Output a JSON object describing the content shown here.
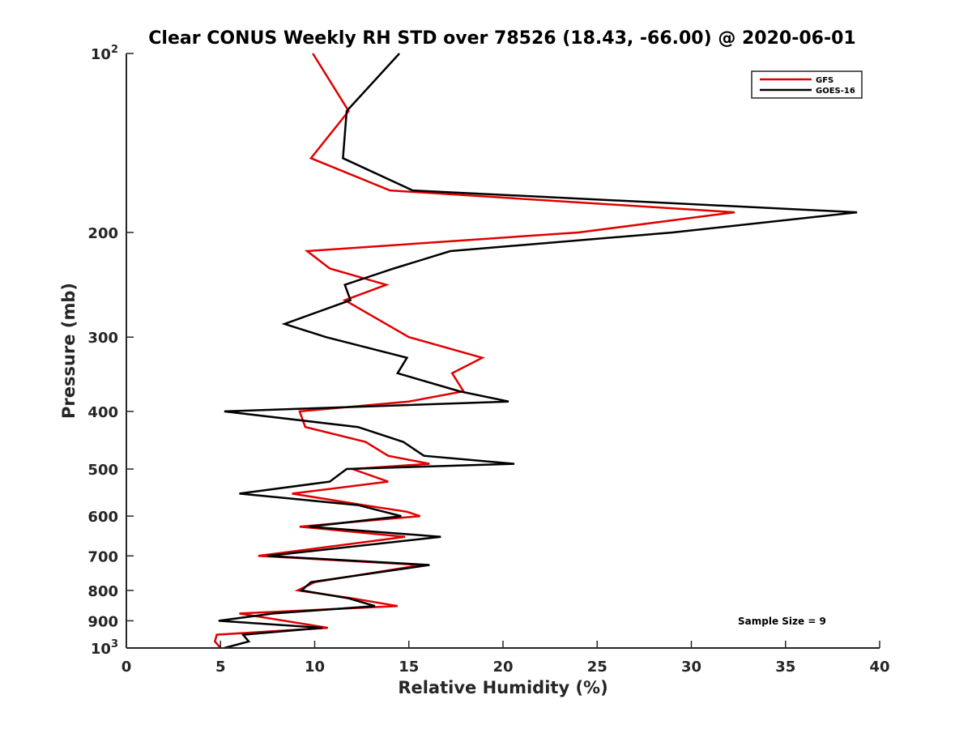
{
  "chart_data": {
    "type": "line",
    "title": "Clear CONUS Weekly RH STD over 78526 (18.43, -66.00) @ 2020-06-01",
    "xlabel": "Relative Humidity (%)",
    "ylabel": "Pressure (mb)",
    "xlim": [
      0,
      40
    ],
    "ylim": [
      100,
      1000
    ],
    "y_scale": "log",
    "y_reversed": true,
    "grid": false,
    "legend_position": "top-right",
    "x_ticks": [
      0,
      5,
      10,
      15,
      20,
      25,
      30,
      35,
      40
    ],
    "y_ticks": [
      {
        "value": 100,
        "base": "10",
        "exp": "2"
      },
      {
        "value": 200,
        "label": "200"
      },
      {
        "value": 300,
        "label": "300"
      },
      {
        "value": 400,
        "label": "400"
      },
      {
        "value": 500,
        "label": "500"
      },
      {
        "value": 600,
        "label": "600"
      },
      {
        "value": 700,
        "label": "700"
      },
      {
        "value": 800,
        "label": "800"
      },
      {
        "value": 900,
        "label": "900"
      },
      {
        "value": 1000,
        "base": "10",
        "exp": "3"
      }
    ],
    "annotation": "Sample Size = 9",
    "series": [
      {
        "name": "GFS",
        "color": "#e00000",
        "points": [
          [
            9.9,
            100
          ],
          [
            11.8,
            125
          ],
          [
            9.8,
            150
          ],
          [
            14.0,
            170
          ],
          [
            32.3,
            185
          ],
          [
            24.0,
            200
          ],
          [
            9.6,
            215
          ],
          [
            10.8,
            230
          ],
          [
            13.8,
            245
          ],
          [
            11.6,
            260
          ],
          [
            15.0,
            300
          ],
          [
            18.9,
            325
          ],
          [
            17.3,
            345
          ],
          [
            17.9,
            370
          ],
          [
            15.0,
            385
          ],
          [
            9.2,
            400
          ],
          [
            9.5,
            425
          ],
          [
            12.7,
            450
          ],
          [
            13.9,
            475
          ],
          [
            16.1,
            490
          ],
          [
            12.0,
            500
          ],
          [
            13.9,
            525
          ],
          [
            8.8,
            550
          ],
          [
            12.6,
            575
          ],
          [
            14.9,
            590
          ],
          [
            15.6,
            600
          ],
          [
            9.2,
            625
          ],
          [
            14.8,
            650
          ],
          [
            7.0,
            700
          ],
          [
            15.7,
            725
          ],
          [
            10.0,
            775
          ],
          [
            9.1,
            800
          ],
          [
            12.0,
            825
          ],
          [
            14.4,
            850
          ],
          [
            6.0,
            875
          ],
          [
            10.7,
            925
          ],
          [
            4.8,
            950
          ],
          [
            4.7,
            975
          ],
          [
            5.0,
            1000
          ]
        ]
      },
      {
        "name": "GOES-16",
        "color": "#000000",
        "points": [
          [
            14.5,
            100
          ],
          [
            11.7,
            125
          ],
          [
            11.5,
            150
          ],
          [
            15.2,
            170
          ],
          [
            38.8,
            185
          ],
          [
            29.0,
            200
          ],
          [
            17.2,
            215
          ],
          [
            14.2,
            230
          ],
          [
            11.6,
            245
          ],
          [
            11.9,
            260
          ],
          [
            8.4,
            285
          ],
          [
            10.6,
            300
          ],
          [
            14.9,
            325
          ],
          [
            14.4,
            345
          ],
          [
            17.7,
            370
          ],
          [
            20.3,
            385
          ],
          [
            5.2,
            400
          ],
          [
            12.3,
            425
          ],
          [
            14.7,
            450
          ],
          [
            15.8,
            475
          ],
          [
            20.6,
            490
          ],
          [
            11.7,
            500
          ],
          [
            10.8,
            525
          ],
          [
            6.0,
            550
          ],
          [
            12.3,
            575
          ],
          [
            14.6,
            600
          ],
          [
            9.7,
            625
          ],
          [
            16.7,
            650
          ],
          [
            7.5,
            700
          ],
          [
            16.1,
            725
          ],
          [
            9.8,
            775
          ],
          [
            9.3,
            800
          ],
          [
            11.8,
            825
          ],
          [
            13.2,
            850
          ],
          [
            7.8,
            875
          ],
          [
            4.9,
            900
          ],
          [
            10.4,
            925
          ],
          [
            6.2,
            950
          ],
          [
            6.5,
            975
          ],
          [
            5.2,
            1000
          ]
        ]
      }
    ]
  }
}
